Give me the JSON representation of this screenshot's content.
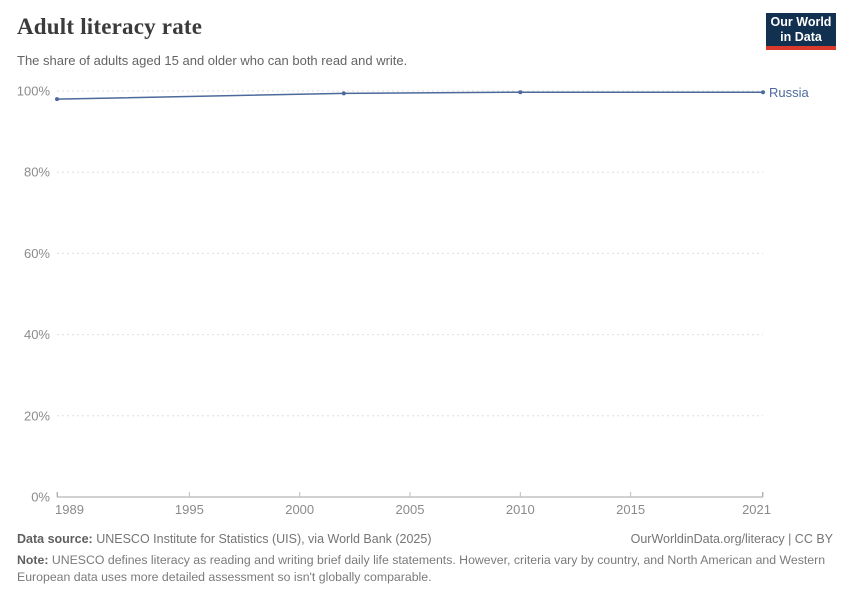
{
  "header": {
    "title": "Adult literacy rate",
    "subtitle": "The share of adults aged 15 and older who can both read and write.",
    "logo": {
      "line1": "Our World",
      "line2": "in Data",
      "bg": "#12304f",
      "accent": "#d93a2b"
    }
  },
  "chart_data": {
    "type": "line",
    "title": "Adult literacy rate",
    "series": [
      {
        "name": "Russia",
        "color": "#4c6a9c",
        "points": [
          [
            1989,
            98.0
          ],
          [
            2002,
            99.4
          ],
          [
            2010,
            99.7
          ],
          [
            2021,
            99.7
          ]
        ]
      }
    ],
    "x_ticks": [
      1989,
      1995,
      2000,
      2005,
      2010,
      2015,
      2021
    ],
    "y_ticks": [
      0,
      20,
      40,
      60,
      80,
      100
    ],
    "y_tick_suffix": "%",
    "xlim": [
      1989,
      2021
    ],
    "ylim": [
      0,
      100
    ],
    "grid": "horizontal-dashed",
    "legend_position": "end-of-line",
    "xlabel": "",
    "ylabel": ""
  },
  "footer": {
    "source_label": "Data source:",
    "source_text": " UNESCO Institute for Statistics (UIS), via World Bank (2025)",
    "link_text": "OurWorldinData.org/literacy | CC BY",
    "note_label": "Note:",
    "note_text": " UNESCO defines literacy as reading and writing brief daily life statements. However, criteria vary by country, and North American and Western European data uses more detailed assessment so isn't globally comparable."
  }
}
